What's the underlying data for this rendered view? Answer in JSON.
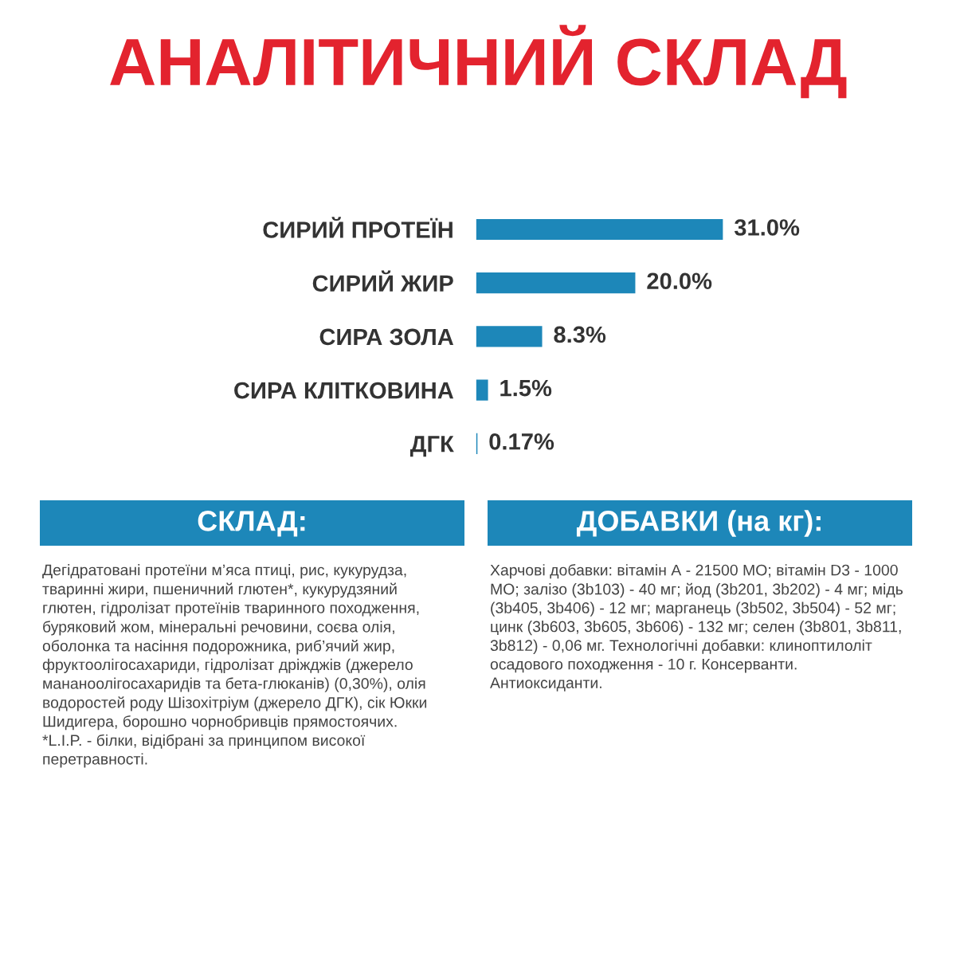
{
  "chart_data": {
    "type": "bar",
    "orientation": "horizontal",
    "title": "АНАЛІТИЧНИЙ СКЛАД",
    "categories": [
      "СИРИЙ ПРОТЕЇН",
      "СИРИЙ ЖИР",
      "СИРА ЗОЛА",
      "СИРА КЛІТКОВИНА",
      "ДГК"
    ],
    "values": [
      31.0,
      20.0,
      8.3,
      1.5,
      0.17
    ],
    "value_labels": [
      "31.0%",
      "20.0%",
      "8.3%",
      "1.5%",
      "0.17%"
    ],
    "color": "#1d87b9",
    "tick_labels": false,
    "grid": false,
    "legend": false,
    "annotations": [
      "СКЛАД:",
      "Дегідратовані протеїни м’яса птиці, рис, кукурудза,\nтваринні жири, пшеничний глютен*, кукурудзяний\nглютен, гідролізат протеїнів тваринного походження,\nбуряковий жом, мінеральні речовини, соєва олія,\nоболонка та насіння подорожника, риб’ячий жир,\nфруктоолігосахариди, гідролізат дріжджів (джерело\nмананоолігосахаридів та бета-глюканів) (0,30%), олія\nводоростей роду Шізохітріум (джерело ДГК), сік Юкки\nШидигера, борошно чорнобривців прямостоячих.\n*L.I.P. - білки, відібрані за принципом високої\nперетравності.",
      "ДОБАВКИ (на кг):",
      "Харчові добавки: вітамін А - 21500 МО; вітамін D3 - 1000\nМО; залізо (3b103) - 40 мг; йод (3b201, 3b202) - 4 мг; мідь\n(3b405, 3b406) - 12 мг; марганець (3b502, 3b504) - 52 мг;\nцинк (3b603, 3b605, 3b606) - 132 мг; селен (3b801, 3b811,\n3b812) - 0,06 мг. Технологічні добавки: клиноптилоліт\nосадового походження - 10 г. Консерванти.\nАнтиоксиданти."
    ]
  }
}
